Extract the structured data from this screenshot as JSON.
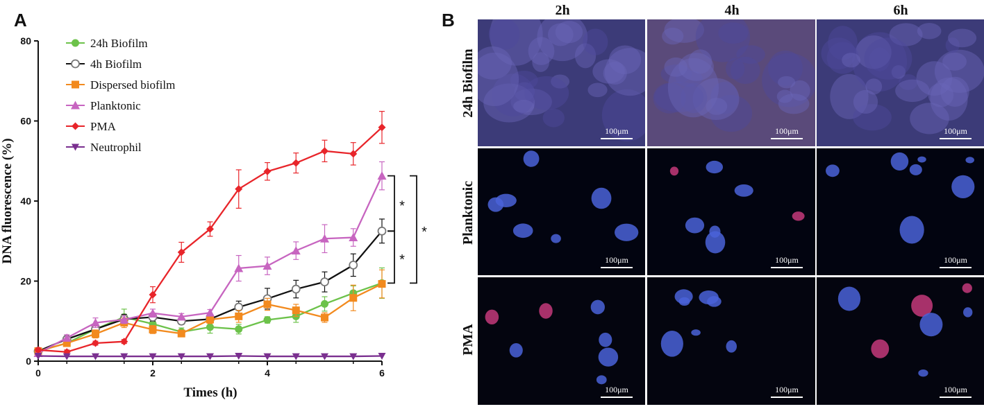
{
  "panel_a_letter": "A",
  "panel_b_letter": "B",
  "chart_data": {
    "type": "line",
    "title": "",
    "xlabel": "Times (h)",
    "ylabel": "DNA fluorescence (%)",
    "xlim": [
      0,
      6
    ],
    "ylim": [
      0,
      80
    ],
    "x_ticks": [
      0,
      2,
      4,
      6
    ],
    "y_ticks": [
      0,
      20,
      40,
      60,
      80
    ],
    "x": [
      0,
      0.5,
      1,
      1.5,
      2,
      2.5,
      3,
      3.5,
      4,
      4.5,
      5,
      5.5,
      6
    ],
    "legend_position": "top-left",
    "grid": false,
    "series": [
      {
        "name": "24h Biofilm",
        "color": "#6cc24a",
        "marker": "circle",
        "values": [
          2.5,
          4.5,
          8.0,
          11.0,
          9.3,
          7.3,
          8.5,
          8.0,
          10.3,
          11.2,
          14.3,
          17.0,
          19.5
        ],
        "errors": [
          0.8,
          0.8,
          1.2,
          2.0,
          1.2,
          1.0,
          1.5,
          1.2,
          0.8,
          1.5,
          1.8,
          1.8,
          3.8
        ]
      },
      {
        "name": "4h Biofilm",
        "color": "#111111",
        "marker": "open-circle",
        "values": [
          2.5,
          5.5,
          8.0,
          10.5,
          11.0,
          10.0,
          10.5,
          13.5,
          15.6,
          18.0,
          19.8,
          24.0,
          32.5
        ],
        "errors": [
          0.5,
          0.8,
          1.0,
          1.2,
          1.0,
          0.8,
          1.0,
          1.5,
          2.6,
          2.2,
          2.5,
          2.8,
          3.0
        ]
      },
      {
        "name": "Dispersed biofilm",
        "color": "#f28a1e",
        "marker": "square",
        "values": [
          2.5,
          4.5,
          6.8,
          9.6,
          7.9,
          6.9,
          10.4,
          11.2,
          14.2,
          12.7,
          10.9,
          15.8,
          19.3
        ],
        "errors": [
          0.5,
          0.8,
          1.0,
          1.2,
          1.0,
          0.8,
          1.0,
          1.5,
          1.5,
          1.5,
          1.2,
          3.2,
          3.5
        ]
      },
      {
        "name": "Planktonic",
        "color": "#c765c0",
        "marker": "triangle",
        "values": [
          2.0,
          5.8,
          9.6,
          10.4,
          12.0,
          11.1,
          12.1,
          23.2,
          23.8,
          27.6,
          30.6,
          30.9,
          46.3
        ],
        "errors": [
          0.5,
          0.8,
          1.2,
          1.0,
          1.0,
          0.8,
          0.8,
          3.2,
          2.2,
          2.2,
          3.5,
          2.2,
          3.5
        ]
      },
      {
        "name": "PMA",
        "color": "#e8252a",
        "marker": "diamond",
        "values": [
          2.8,
          2.3,
          4.5,
          4.9,
          16.6,
          27.2,
          33.0,
          43.0,
          47.4,
          49.5,
          52.5,
          51.8,
          58.4
        ],
        "errors": [
          0.5,
          0.5,
          0.5,
          0.5,
          2.0,
          2.5,
          1.8,
          4.8,
          2.2,
          2.5,
          2.7,
          2.8,
          4.0
        ]
      },
      {
        "name": "Neutrophil",
        "color": "#7a2f8f",
        "marker": "triangle-down",
        "values": [
          1.3,
          1.2,
          1.2,
          1.2,
          1.2,
          1.2,
          1.2,
          1.3,
          1.2,
          1.2,
          1.2,
          1.2,
          1.3
        ],
        "errors": [
          0,
          0,
          0,
          0,
          0,
          0,
          0,
          0,
          0,
          0,
          0,
          0,
          0
        ]
      }
    ],
    "significance": [
      {
        "label": "*",
        "from_value": 46.3,
        "to_value": 32.5
      },
      {
        "label": "*",
        "from_value": 32.5,
        "to_value": 19.5
      },
      {
        "label": "*",
        "from_value": 46.3,
        "to_value": 19.5
      }
    ]
  },
  "micrographs": {
    "columns": [
      "2h",
      "4h",
      "6h"
    ],
    "rows": [
      "24h Biofilm",
      "Planktonic",
      "PMA"
    ],
    "scale_label": "100μm"
  }
}
